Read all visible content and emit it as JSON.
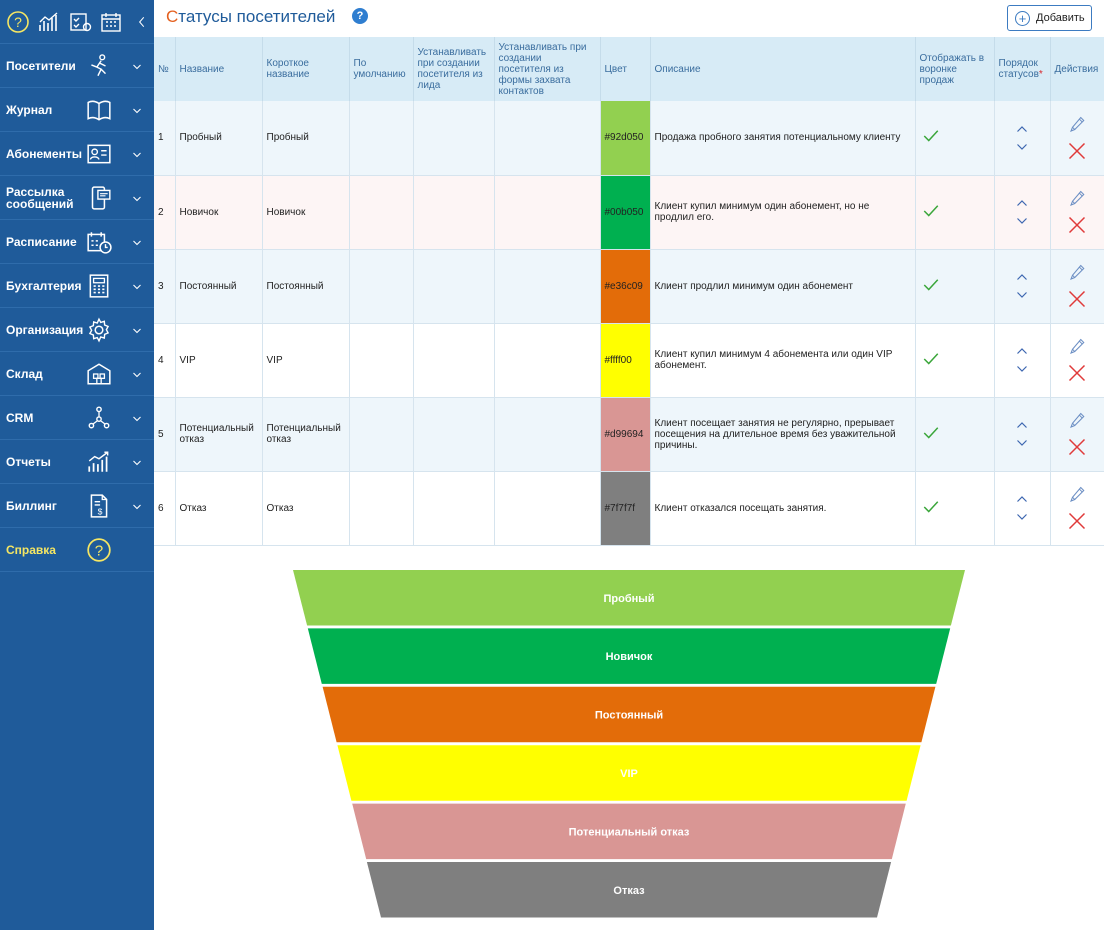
{
  "sidebar": {
    "top_icons": [
      "help-icon",
      "analytics-icon",
      "tasks-icon",
      "calendar-icon",
      "collapse-chevron-icon"
    ],
    "items": [
      {
        "label": "Посетители",
        "icon": "visitors-icon"
      },
      {
        "label": "Журнал",
        "icon": "journal-icon"
      },
      {
        "label": "Абонементы",
        "icon": "membership-icon"
      },
      {
        "label": "Рассылка сообщений",
        "icon": "messaging-icon"
      },
      {
        "label": "Расписание",
        "icon": "schedule-icon"
      },
      {
        "label": "Бухгалтерия",
        "icon": "accounting-icon"
      },
      {
        "label": "Организация",
        "icon": "settings-icon"
      },
      {
        "label": "Склад",
        "icon": "warehouse-icon"
      },
      {
        "label": "CRM",
        "icon": "crm-icon"
      },
      {
        "label": "Отчеты",
        "icon": "reports-icon"
      },
      {
        "label": "Биллинг",
        "icon": "billing-icon"
      },
      {
        "label": "Справка",
        "icon": "help-icon"
      }
    ]
  },
  "page": {
    "title_first": "С",
    "title_rest": "татусы посетителей",
    "help_glyph": "?",
    "add_label": "Добавить"
  },
  "table": {
    "headers": [
      "№",
      "Название",
      "Короткое название",
      "По умолчанию",
      "Устанавливать при создании посетителя из лида",
      "Устанавливать при создании посетителя из формы захвата контактов",
      "Цвет",
      "Описание",
      "Отображать в воронке продаж",
      "Порядок статусов",
      "Действия"
    ],
    "required_mark": "*",
    "rows": [
      {
        "num": "1",
        "name": "Пробный",
        "short": "Пробный",
        "color": "#92d050",
        "color_label": "#92d050",
        "desc": "Продажа пробного занятия потенциальному клиенту"
      },
      {
        "num": "2",
        "name": "Новичок",
        "short": "Новичок",
        "color": "#00b050",
        "color_label": "#00b050",
        "desc": "Клиент купил минимум один абонемент, но не продлил его."
      },
      {
        "num": "3",
        "name": "Постоянный",
        "short": "Постоянный",
        "color": "#e36c09",
        "color_label": "#e36c09",
        "desc": "Клиент продлил минимум один абонемент"
      },
      {
        "num": "4",
        "name": "VIP",
        "short": "VIP",
        "color": "#ffff00",
        "color_label": "#ffff00",
        "desc": "Клиент купил минимум 4 абонемента или один VIP абонемент."
      },
      {
        "num": "5",
        "name": "Потенциальный отказ",
        "short": "Потенциальный отказ",
        "color": "#d99694",
        "color_label": "#d99694",
        "desc": "Клиент посещает занятия не регулярно, прерывает посещения на длительное время без уважительной причины."
      },
      {
        "num": "6",
        "name": "Отказ",
        "short": "Отказ",
        "color": "#7f7f7f",
        "color_label": "#7f7f7f",
        "desc": "Клиент отказался посещать занятия."
      }
    ]
  },
  "funnel": {
    "stages": [
      {
        "label": "Пробный",
        "color": "#92d050"
      },
      {
        "label": "Новичок",
        "color": "#00b050"
      },
      {
        "label": "Постоянный",
        "color": "#e36c09"
      },
      {
        "label": "VIP",
        "color": "#ffff00"
      },
      {
        "label": "Потенциальный отказ",
        "color": "#d99694"
      },
      {
        "label": "Отказ",
        "color": "#7f7f7f"
      }
    ]
  },
  "colors": {
    "sidebar": "#1f5b9a",
    "accent": "#e4601f",
    "check": "#3aa63a",
    "delete": "#e03a3a",
    "arrow": "#3c66b0"
  }
}
